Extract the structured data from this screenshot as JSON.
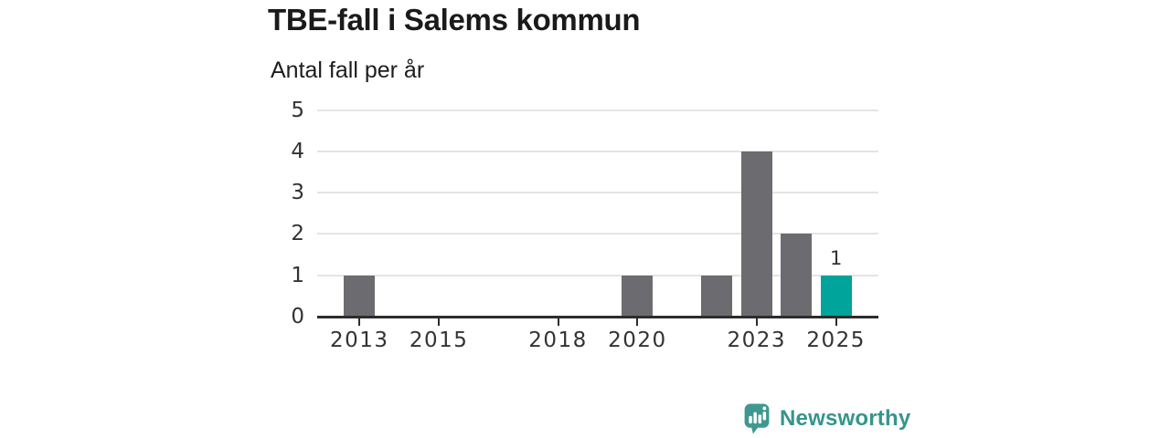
{
  "chart_data": {
    "type": "bar",
    "title": "TBE-fall i Salems kommun",
    "subtitle": "Antal fall per år",
    "xlabel": "",
    "ylabel": "Antal fall per år",
    "categories": [
      2013,
      2014,
      2015,
      2016,
      2017,
      2018,
      2019,
      2020,
      2021,
      2022,
      2023,
      2024,
      2025
    ],
    "values": [
      1,
      0,
      0,
      0,
      0,
      0,
      0,
      1,
      0,
      1,
      4,
      2,
      1
    ],
    "ylim": [
      0,
      5
    ],
    "y_ticks": [
      0,
      1,
      2,
      3,
      4,
      5
    ],
    "x_tick_labels": [
      "2013",
      "2015",
      "2018",
      "2020",
      "2023",
      "2025"
    ],
    "grid": "horizontal",
    "legend": "none",
    "highlight": {
      "year": 2025,
      "value_label": "1"
    },
    "colors": {
      "bar": "#6c6c70",
      "highlight_bar": "#00a49b",
      "axis": "#2d2d2d",
      "grid": "#e4e4e4",
      "title_text": "#1a1a1a",
      "axis_text": "#333333"
    }
  },
  "footer": {
    "brand": "Newsworthy",
    "brand_color": "#35958c",
    "logo_icon": "speech-bubble-bar-chart"
  }
}
